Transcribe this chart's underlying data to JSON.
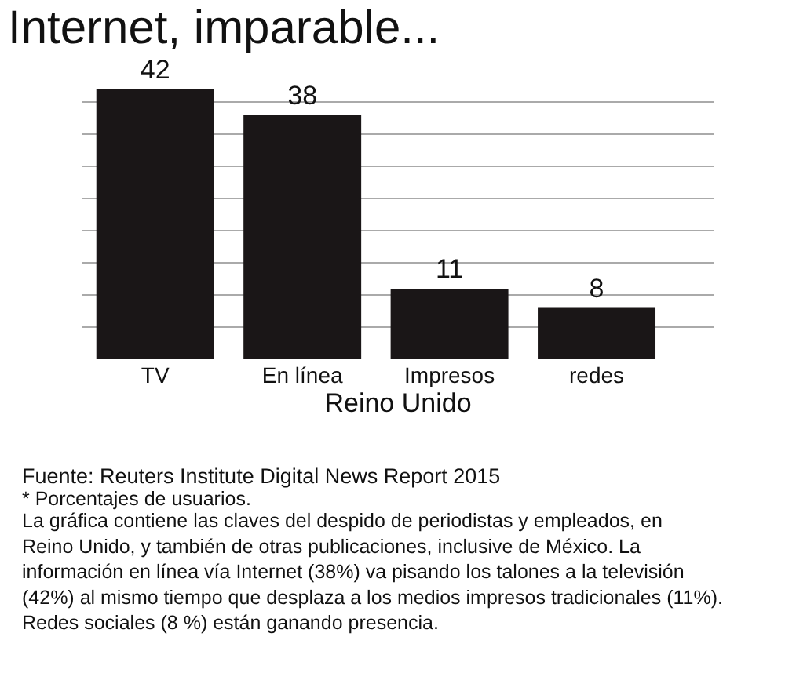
{
  "chart_data": {
    "type": "bar",
    "title": "Internet, imparable...",
    "xlabel": "Reino Unido",
    "categories": [
      "TV",
      "En línea",
      "Impresos",
      "redes"
    ],
    "values": [
      42,
      38,
      11,
      8
    ],
    "color": "#1a1617",
    "data_labels": true,
    "grid": "y",
    "tick_labels": "x",
    "annotations": [
      "Fuente: Reuters Institute Digital News Report 2015",
      "* Porcentajes de usuarios.",
      "La gráfica contiene las claves del despido de periodistas y empleados, en Reino Unido, y también de otras publicaciones, inclusive de México. La información en línea vía Internet (38%) va pisando los talones a la televisión (42%) al mismo tiempo que desplaza a los medios impresos tradicionales (11%). Redes sociales (8 %) están ganando presencia."
    ]
  }
}
